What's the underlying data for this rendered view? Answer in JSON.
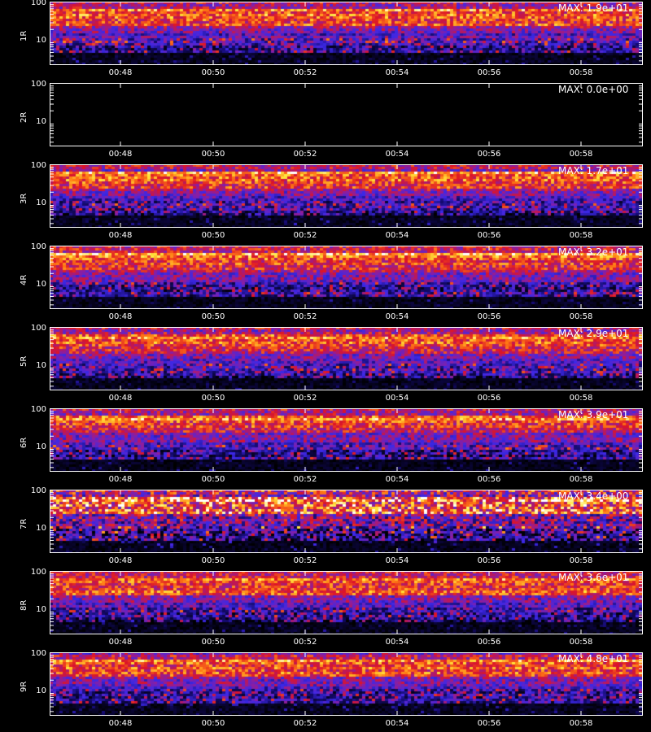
{
  "chart_data": {
    "type": "heatmap",
    "x_tick_labels": [
      "00:48",
      "00:50",
      "00:52",
      "00:54",
      "00:56",
      "00:58"
    ],
    "y_tick_labels": [
      "100",
      "10"
    ],
    "yscale": "log",
    "colormap": "black-blue-red-yellow-white",
    "panels": [
      {
        "ylabel": "1R",
        "max_label": "MAX: 1.9e+01",
        "max": 19
      },
      {
        "ylabel": "2R",
        "max_label": "MAX: 0.0e+00",
        "max": 0
      },
      {
        "ylabel": "3R",
        "max_label": "MAX: 1.7e+01",
        "max": 17
      },
      {
        "ylabel": "4R",
        "max_label": "MAX: 3.2e+01",
        "max": 32
      },
      {
        "ylabel": "5R",
        "max_label": "MAX: 2.9e+01",
        "max": 29
      },
      {
        "ylabel": "6R",
        "max_label": "MAX: 3.9e+01",
        "max": 39
      },
      {
        "ylabel": "7R",
        "max_label": "MAX: 3.4e+00",
        "max": 3.4
      },
      {
        "ylabel": "8R",
        "max_label": "MAX: 3.6e+01",
        "max": 36
      },
      {
        "ylabel": "9R",
        "max_label": "MAX: 4.8e+01",
        "max": 48
      }
    ]
  }
}
